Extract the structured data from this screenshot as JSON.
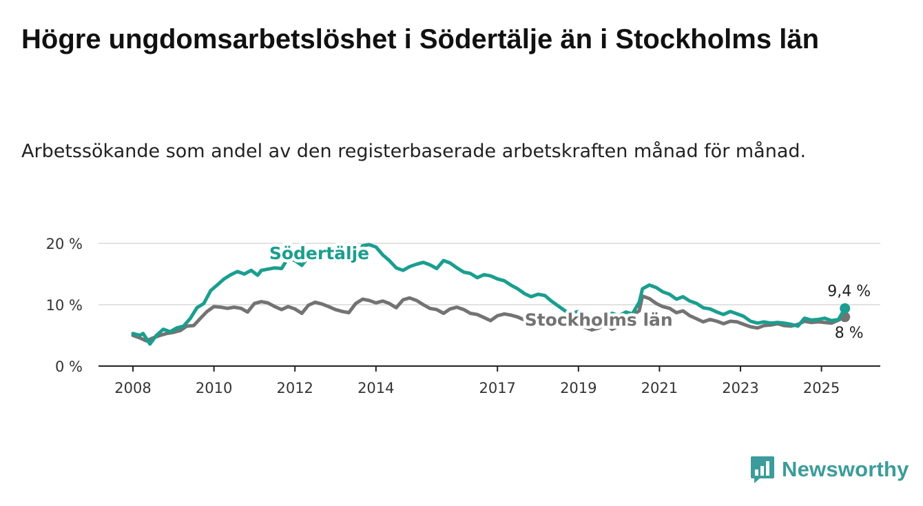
{
  "title": "Högre ungdomsarbetslöshet i Södertälje än i Stockholms län",
  "subtitle": "Arbetssökande som andel av den registerbaserade arbetskraften månad för månad.",
  "brand": {
    "name": "Newsworthy",
    "icon": "bar-chart-logo-icon",
    "color": "#3b9c9b"
  },
  "chart_data": {
    "type": "line",
    "title": "Högre ungdomsarbetslöshet i Södertälje än i Stockholms län",
    "subtitle": "Arbetssökande som andel av den registerbaserade arbetskraften månad för månad.",
    "xlabel": "",
    "ylabel": "",
    "xlim": [
      2008,
      2025.75
    ],
    "ylim": [
      0,
      20
    ],
    "x_ticks": [
      {
        "value": 2008,
        "label": "2008"
      },
      {
        "value": 2010,
        "label": "2010"
      },
      {
        "value": 2012,
        "label": "2012"
      },
      {
        "value": 2014,
        "label": "2014"
      },
      {
        "value": 2017,
        "label": "2017"
      },
      {
        "value": 2019,
        "label": "2019"
      },
      {
        "value": 2021,
        "label": "2021"
      },
      {
        "value": 2023,
        "label": "2023"
      },
      {
        "value": 2025,
        "label": "2025"
      }
    ],
    "y_ticks": [
      {
        "value": 0,
        "label": "0 %"
      },
      {
        "value": 10,
        "label": "10 %"
      },
      {
        "value": 20,
        "label": "20 %"
      }
    ],
    "grid": true,
    "legend": "inline labels",
    "series": [
      {
        "name": "Södertälje",
        "color": "#1a9e8f",
        "label_at": [
          2012.6,
          17.4
        ],
        "end_label": "9,4 %",
        "end_value": 9.4,
        "points": [
          [
            2008,
            5.3
          ],
          [
            2008.17,
            5.0
          ],
          [
            2008.25,
            5.3
          ],
          [
            2008.42,
            3.6
          ],
          [
            2008.58,
            5.0
          ],
          [
            2008.75,
            6.0
          ],
          [
            2008.92,
            5.6
          ],
          [
            2009.08,
            6.2
          ],
          [
            2009.25,
            6.5
          ],
          [
            2009.42,
            7.8
          ],
          [
            2009.58,
            9.5
          ],
          [
            2009.75,
            10.2
          ],
          [
            2009.92,
            12.3
          ],
          [
            2010.08,
            13.2
          ],
          [
            2010.25,
            14.2
          ],
          [
            2010.42,
            14.9
          ],
          [
            2010.58,
            15.4
          ],
          [
            2010.75,
            15.0
          ],
          [
            2010.92,
            15.6
          ],
          [
            2011.08,
            14.8
          ],
          [
            2011.17,
            15.6
          ],
          [
            2011.33,
            15.8
          ],
          [
            2011.5,
            16.0
          ],
          [
            2011.67,
            15.9
          ],
          [
            2011.83,
            17.6
          ],
          [
            2012,
            17.2
          ],
          [
            2012.17,
            16.4
          ],
          [
            2012.33,
            17.8
          ],
          [
            2012.5,
            18.9
          ],
          [
            2012.67,
            18.3
          ],
          [
            2012.83,
            17.6
          ],
          [
            2013,
            17.2
          ],
          [
            2013.17,
            17.9
          ],
          [
            2013.33,
            17.6
          ],
          [
            2013.5,
            17.1
          ],
          [
            2013.67,
            19.6
          ],
          [
            2013.83,
            19.8
          ],
          [
            2014,
            19.4
          ],
          [
            2014.17,
            18.1
          ],
          [
            2014.33,
            17.2
          ],
          [
            2014.5,
            16.0
          ],
          [
            2014.67,
            15.6
          ],
          [
            2014.83,
            16.2
          ],
          [
            2015,
            16.6
          ],
          [
            2015.17,
            16.9
          ],
          [
            2015.33,
            16.5
          ],
          [
            2015.5,
            15.9
          ],
          [
            2015.67,
            17.2
          ],
          [
            2015.83,
            16.8
          ],
          [
            2016,
            16.0
          ],
          [
            2016.17,
            15.3
          ],
          [
            2016.33,
            15.1
          ],
          [
            2016.5,
            14.4
          ],
          [
            2016.67,
            14.9
          ],
          [
            2016.83,
            14.7
          ],
          [
            2017,
            14.2
          ],
          [
            2017.17,
            13.9
          ],
          [
            2017.33,
            13.2
          ],
          [
            2017.5,
            12.6
          ],
          [
            2017.67,
            11.8
          ],
          [
            2017.83,
            11.3
          ],
          [
            2018,
            11.7
          ],
          [
            2018.17,
            11.5
          ],
          [
            2018.33,
            10.6
          ],
          [
            2018.5,
            9.8
          ],
          [
            2018.67,
            9.0
          ],
          [
            2018.83,
            8.6
          ],
          [
            2019,
            8.9
          ],
          [
            2019.17,
            8.4
          ],
          [
            2019.33,
            8.0
          ],
          [
            2019.5,
            8.3
          ],
          [
            2019.67,
            7.9
          ],
          [
            2019.83,
            8.6
          ],
          [
            2020,
            8.2
          ],
          [
            2020.17,
            8.8
          ],
          [
            2020.33,
            8.5
          ],
          [
            2020.5,
            10.4
          ],
          [
            2020.58,
            12.6
          ],
          [
            2020.75,
            13.2
          ],
          [
            2020.92,
            12.8
          ],
          [
            2021.08,
            12.1
          ],
          [
            2021.25,
            11.7
          ],
          [
            2021.42,
            10.9
          ],
          [
            2021.58,
            11.3
          ],
          [
            2021.75,
            10.6
          ],
          [
            2021.92,
            10.2
          ],
          [
            2022.08,
            9.5
          ],
          [
            2022.25,
            9.3
          ],
          [
            2022.42,
            8.8
          ],
          [
            2022.58,
            8.4
          ],
          [
            2022.75,
            8.9
          ],
          [
            2022.92,
            8.5
          ],
          [
            2023.08,
            8.1
          ],
          [
            2023.25,
            7.3
          ],
          [
            2023.42,
            7.0
          ],
          [
            2023.58,
            7.2
          ],
          [
            2023.75,
            7.0
          ],
          [
            2023.92,
            7.1
          ],
          [
            2024.08,
            7.0
          ],
          [
            2024.25,
            6.8
          ],
          [
            2024.42,
            6.5
          ],
          [
            2024.58,
            7.8
          ],
          [
            2024.75,
            7.5
          ],
          [
            2024.92,
            7.6
          ],
          [
            2025.08,
            7.8
          ],
          [
            2025.25,
            7.4
          ],
          [
            2025.42,
            7.6
          ],
          [
            2025.58,
            9.4
          ]
        ]
      },
      {
        "name": "Stockholms län",
        "color": "#737373",
        "label_at": [
          2019.5,
          6.6
        ],
        "end_label": "8 %",
        "end_value": 8,
        "points": [
          [
            2008,
            5.0
          ],
          [
            2008.17,
            4.6
          ],
          [
            2008.33,
            4.1
          ],
          [
            2008.5,
            4.6
          ],
          [
            2008.67,
            5.0
          ],
          [
            2008.83,
            5.3
          ],
          [
            2009,
            5.5
          ],
          [
            2009.17,
            5.8
          ],
          [
            2009.33,
            6.5
          ],
          [
            2009.5,
            6.6
          ],
          [
            2009.67,
            7.8
          ],
          [
            2009.83,
            8.9
          ],
          [
            2010,
            9.7
          ],
          [
            2010.17,
            9.6
          ],
          [
            2010.33,
            9.4
          ],
          [
            2010.5,
            9.6
          ],
          [
            2010.67,
            9.4
          ],
          [
            2010.83,
            8.8
          ],
          [
            2011,
            10.2
          ],
          [
            2011.17,
            10.5
          ],
          [
            2011.33,
            10.3
          ],
          [
            2011.5,
            9.7
          ],
          [
            2011.67,
            9.2
          ],
          [
            2011.83,
            9.7
          ],
          [
            2012,
            9.3
          ],
          [
            2012.17,
            8.6
          ],
          [
            2012.33,
            9.9
          ],
          [
            2012.5,
            10.4
          ],
          [
            2012.67,
            10.1
          ],
          [
            2012.83,
            9.7
          ],
          [
            2013,
            9.2
          ],
          [
            2013.17,
            8.9
          ],
          [
            2013.33,
            8.7
          ],
          [
            2013.5,
            10.2
          ],
          [
            2013.67,
            10.9
          ],
          [
            2013.83,
            10.7
          ],
          [
            2014,
            10.3
          ],
          [
            2014.17,
            10.6
          ],
          [
            2014.33,
            10.2
          ],
          [
            2014.5,
            9.5
          ],
          [
            2014.67,
            10.8
          ],
          [
            2014.83,
            11.1
          ],
          [
            2015,
            10.7
          ],
          [
            2015.17,
            10.0
          ],
          [
            2015.33,
            9.4
          ],
          [
            2015.5,
            9.2
          ],
          [
            2015.67,
            8.6
          ],
          [
            2015.83,
            9.3
          ],
          [
            2016,
            9.6
          ],
          [
            2016.17,
            9.2
          ],
          [
            2016.33,
            8.6
          ],
          [
            2016.5,
            8.4
          ],
          [
            2016.67,
            7.9
          ],
          [
            2016.83,
            7.4
          ],
          [
            2017,
            8.2
          ],
          [
            2017.17,
            8.5
          ],
          [
            2017.33,
            8.3
          ],
          [
            2017.5,
            8.0
          ],
          [
            2017.67,
            7.5
          ],
          [
            2017.83,
            7.3
          ],
          [
            2018,
            7.0
          ],
          [
            2018.17,
            6.7
          ],
          [
            2018.33,
            7.0
          ],
          [
            2018.5,
            7.2
          ],
          [
            2018.67,
            7.0
          ],
          [
            2018.83,
            6.7
          ],
          [
            2019,
            6.4
          ],
          [
            2019.17,
            6.3
          ],
          [
            2019.33,
            5.9
          ],
          [
            2019.5,
            6.2
          ],
          [
            2019.67,
            6.9
          ],
          [
            2019.83,
            6.0
          ],
          [
            2020,
            6.5
          ],
          [
            2020.17,
            7.5
          ],
          [
            2020.33,
            8.3
          ],
          [
            2020.5,
            9.0
          ],
          [
            2020.58,
            11.4
          ],
          [
            2020.75,
            11.0
          ],
          [
            2020.92,
            10.2
          ],
          [
            2021.08,
            9.7
          ],
          [
            2021.25,
            9.4
          ],
          [
            2021.42,
            8.7
          ],
          [
            2021.58,
            9.0
          ],
          [
            2021.75,
            8.2
          ],
          [
            2021.92,
            7.7
          ],
          [
            2022.08,
            7.2
          ],
          [
            2022.25,
            7.6
          ],
          [
            2022.42,
            7.3
          ],
          [
            2022.58,
            6.9
          ],
          [
            2022.75,
            7.3
          ],
          [
            2022.92,
            7.2
          ],
          [
            2023.08,
            6.8
          ],
          [
            2023.25,
            6.4
          ],
          [
            2023.42,
            6.2
          ],
          [
            2023.58,
            6.6
          ],
          [
            2023.75,
            6.7
          ],
          [
            2023.92,
            6.9
          ],
          [
            2024.08,
            6.6
          ],
          [
            2024.25,
            6.5
          ],
          [
            2024.42,
            6.8
          ],
          [
            2024.58,
            7.3
          ],
          [
            2024.75,
            7.1
          ],
          [
            2024.92,
            7.2
          ],
          [
            2025.08,
            7.1
          ],
          [
            2025.25,
            7.0
          ],
          [
            2025.42,
            7.5
          ],
          [
            2025.58,
            8.0
          ]
        ]
      }
    ]
  }
}
